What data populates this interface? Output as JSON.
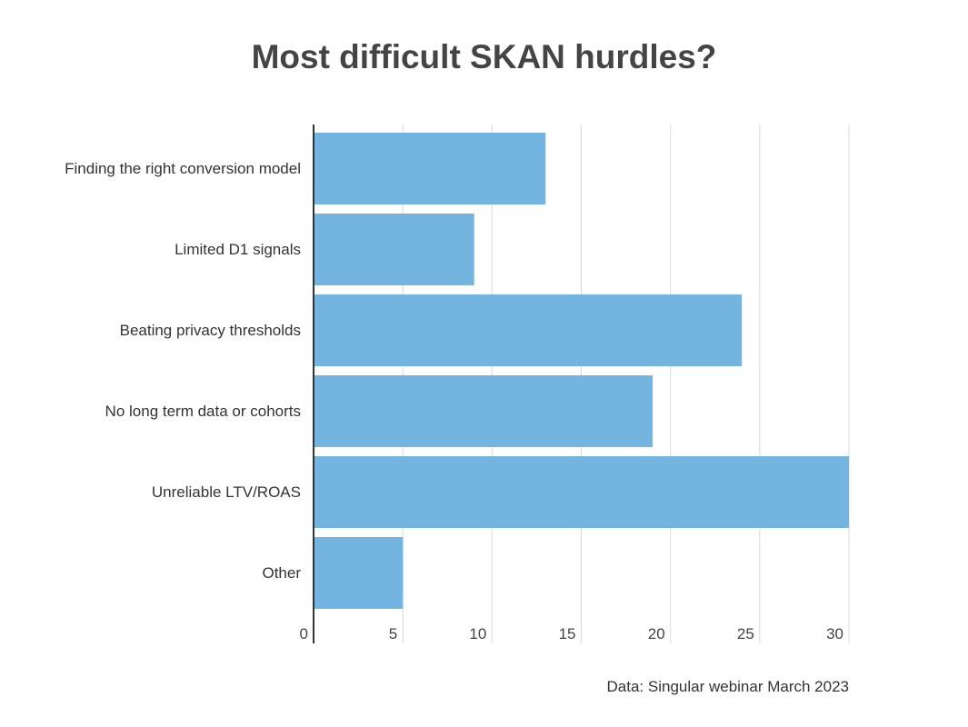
{
  "chart_data": {
    "type": "bar",
    "orientation": "horizontal",
    "title": "Most difficult SKAN hurdles?",
    "categories": [
      "Finding the right conversion model",
      "Limited D1 signals",
      "Beating privacy thresholds",
      "No long term data or cohorts",
      "Unreliable LTV/ROAS",
      "Other"
    ],
    "values": [
      13,
      9,
      24,
      19,
      30,
      5
    ],
    "xlim": [
      0,
      30
    ],
    "xticks": [
      0,
      5,
      10,
      15,
      20,
      25,
      30
    ],
    "xlabel": "",
    "ylabel": "",
    "grid": true,
    "legend": "none",
    "bar_color": "#74b4e0",
    "source": "Data: Singular webinar March 2023"
  }
}
